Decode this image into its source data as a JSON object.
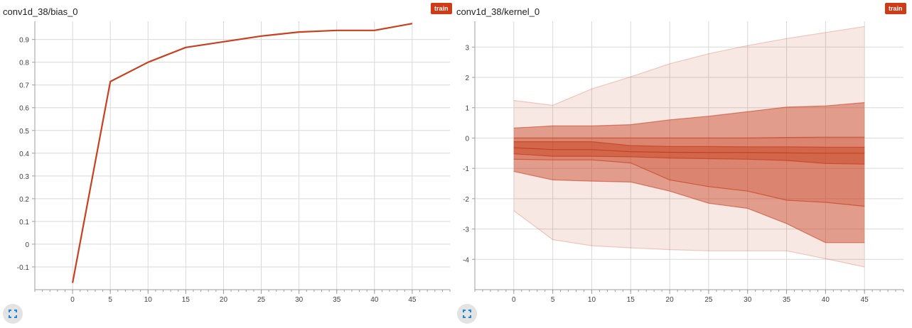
{
  "badge_label": "train",
  "colors": {
    "accent": "#cf3a17",
    "line": "#c8401f",
    "grid": "#d9d9d9",
    "axis": "#9e9e9e"
  },
  "icons": [
    "expand-icon",
    "expand-icon"
  ],
  "chart_data": [
    {
      "type": "line",
      "title": "conv1d_38/bias_0",
      "xlabel": "",
      "ylabel": "",
      "x": [
        0,
        5,
        10,
        15,
        20,
        25,
        30,
        35,
        40,
        45
      ],
      "series": [
        {
          "values": [
            -0.17,
            0.715,
            0.8,
            0.865,
            0.89,
            0.915,
            0.933,
            0.94,
            0.94,
            0.97
          ]
        }
      ],
      "xlim": [
        -5,
        50
      ],
      "ylim": [
        -0.2,
        0.98
      ],
      "x_ticks": [
        "0",
        "5",
        "10",
        "15",
        "20",
        "25",
        "30",
        "35",
        "40",
        "45"
      ],
      "y_ticks": [
        "-0.1",
        "0",
        "0.1",
        "0.2",
        "0.3",
        "0.4",
        "0.5",
        "0.6",
        "0.7",
        "0.8",
        "0.9"
      ],
      "grid": true
    },
    {
      "type": "area",
      "title": "conv1d_38/kernel_0",
      "xlabel": "",
      "ylabel": "",
      "x": [
        0,
        5,
        10,
        15,
        20,
        25,
        30,
        35,
        40,
        45
      ],
      "bands": {
        "p0": [
          -2.4,
          -3.35,
          -3.55,
          -3.62,
          -3.68,
          -3.72,
          -3.72,
          -3.72,
          -3.98,
          -4.25
        ],
        "p7": [
          -1.1,
          -1.38,
          -1.42,
          -1.45,
          -1.75,
          -2.15,
          -2.32,
          -2.82,
          -3.45,
          -3.45
        ],
        "p16": [
          -0.7,
          -0.72,
          -0.72,
          -0.82,
          -1.38,
          -1.6,
          -1.75,
          -2.05,
          -2.12,
          -2.25
        ],
        "p31": [
          -0.52,
          -0.6,
          -0.6,
          -0.62,
          -0.66,
          -0.68,
          -0.7,
          -0.74,
          -0.84,
          -0.86
        ],
        "p50": [
          -0.32,
          -0.38,
          -0.38,
          -0.45,
          -0.47,
          -0.48,
          -0.48,
          -0.49,
          -0.5,
          -0.5
        ],
        "p69": [
          -0.12,
          -0.12,
          -0.12,
          -0.25,
          -0.28,
          -0.28,
          -0.29,
          -0.29,
          -0.3,
          -0.3
        ],
        "p84": [
          0.0,
          0.0,
          0.0,
          0.0,
          0.0,
          0.0,
          0.0,
          0.02,
          0.03,
          0.03
        ],
        "p93": [
          0.33,
          0.4,
          0.4,
          0.44,
          0.6,
          0.72,
          0.87,
          1.02,
          1.06,
          1.17
        ],
        "p100": [
          1.24,
          1.08,
          1.62,
          2.02,
          2.45,
          2.78,
          3.05,
          3.28,
          3.48,
          3.68
        ]
      },
      "xlim": [
        -5,
        50
      ],
      "ylim": [
        -5,
        3.85
      ],
      "x_ticks": [
        "0",
        "5",
        "10",
        "15",
        "20",
        "25",
        "30",
        "35",
        "40",
        "45"
      ],
      "y_ticks": [
        "-4",
        "-3",
        "-2",
        "-1",
        "0",
        "1",
        "2",
        "3"
      ],
      "grid": true
    }
  ]
}
